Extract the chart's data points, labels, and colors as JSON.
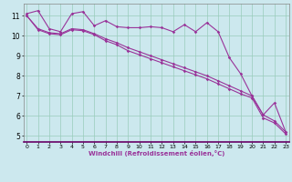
{
  "xlabel": "Windchill (Refroidissement éolien,°C)",
  "background_color": "#cce8ee",
  "grid_color": "#99ccbb",
  "line_color": "#993399",
  "x_ticks": [
    0,
    1,
    2,
    3,
    4,
    5,
    6,
    7,
    8,
    9,
    10,
    11,
    12,
    13,
    14,
    15,
    16,
    17,
    18,
    19,
    20,
    21,
    22,
    23
  ],
  "y_ticks": [
    5,
    6,
    7,
    8,
    9,
    10,
    11
  ],
  "ylim": [
    4.7,
    11.6
  ],
  "xlim": [
    -0.3,
    23.3
  ],
  "series1_y": [
    11.1,
    11.25,
    10.35,
    10.2,
    11.1,
    11.2,
    10.5,
    10.75,
    10.45,
    10.4,
    10.4,
    10.45,
    10.4,
    10.2,
    10.55,
    10.2,
    10.65,
    10.2,
    8.9,
    8.1,
    7.0,
    6.05,
    6.65,
    5.2
  ],
  "series2_y": [
    11.0,
    10.35,
    10.15,
    10.1,
    10.35,
    10.3,
    10.1,
    9.85,
    9.65,
    9.4,
    9.2,
    9.0,
    8.8,
    8.6,
    8.4,
    8.2,
    8.0,
    7.75,
    7.5,
    7.25,
    7.0,
    6.05,
    5.75,
    5.2
  ],
  "series3_y": [
    11.0,
    10.3,
    10.1,
    10.05,
    10.3,
    10.25,
    10.05,
    9.75,
    9.55,
    9.25,
    9.05,
    8.85,
    8.65,
    8.45,
    8.25,
    8.05,
    7.85,
    7.6,
    7.35,
    7.1,
    6.9,
    5.9,
    5.65,
    5.1
  ]
}
